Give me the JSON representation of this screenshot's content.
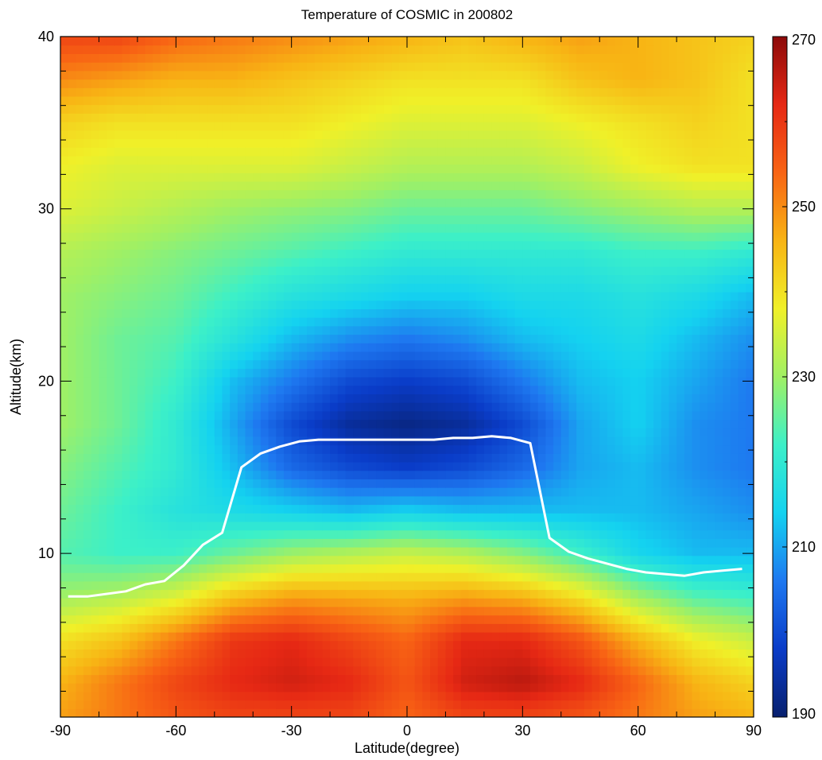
{
  "chart_data": {
    "type": "heatmap",
    "title": "Temperature of COSMIC in 200802",
    "xlabel": "Latitude(degree)",
    "ylabel": "Altitude(km)",
    "xlim": [
      -90,
      90
    ],
    "ylim": [
      0.5,
      40
    ],
    "x_ticks": [
      -90,
      -60,
      -30,
      0,
      30,
      60,
      90
    ],
    "y_ticks": [
      10,
      20,
      30,
      40
    ],
    "colorbar": {
      "range": [
        190,
        270
      ],
      "ticks": [
        190,
        210,
        230,
        250,
        270
      ],
      "colormap": [
        "#08206e",
        "#0a3cc8",
        "#1e78f0",
        "#14d2f0",
        "#3cf0c8",
        "#a0f064",
        "#f0f028",
        "#f8b414",
        "#f86414",
        "#e62814",
        "#8c0a0a"
      ]
    },
    "temperature_grid": {
      "latitude": [
        -90,
        -75,
        -60,
        -45,
        -30,
        -15,
        0,
        15,
        30,
        45,
        60,
        75,
        90
      ],
      "altitude": [
        0.5,
        2.5,
        5,
        7.5,
        10,
        12.5,
        15,
        17.5,
        20,
        22.5,
        25,
        27.5,
        30,
        32.5,
        35,
        37.5,
        40
      ],
      "values": [
        [
          248,
          252,
          256,
          258,
          258,
          258,
          254,
          258,
          258,
          256,
          252,
          248,
          246
        ],
        [
          246,
          252,
          258,
          262,
          264,
          262,
          256,
          264,
          266,
          262,
          254,
          246,
          242
        ],
        [
          240,
          244,
          252,
          260,
          262,
          258,
          254,
          262,
          262,
          256,
          246,
          238,
          234
        ],
        [
          230,
          232,
          236,
          244,
          248,
          247,
          246,
          248,
          246,
          240,
          230,
          224,
          222
        ],
        [
          224,
          222,
          222,
          226,
          230,
          232,
          234,
          232,
          228,
          222,
          215,
          212,
          212
        ],
        [
          226,
          222,
          218,
          216,
          214,
          212,
          214,
          212,
          212,
          212,
          212,
          210,
          208
        ],
        [
          228,
          224,
          220,
          212,
          204,
          200,
          198,
          200,
          204,
          210,
          212,
          208,
          206
        ],
        [
          230,
          226,
          220,
          210,
          200,
          194,
          192,
          194,
          200,
          210,
          214,
          208,
          206
        ],
        [
          230,
          226,
          222,
          212,
          206,
          200,
          198,
          200,
          206,
          212,
          214,
          210,
          206
        ],
        [
          230,
          226,
          224,
          218,
          212,
          208,
          206,
          208,
          212,
          214,
          216,
          212,
          208
        ],
        [
          230,
          228,
          226,
          222,
          218,
          216,
          214,
          214,
          216,
          216,
          218,
          216,
          212
        ],
        [
          232,
          230,
          228,
          226,
          224,
          222,
          220,
          220,
          220,
          220,
          222,
          222,
          220
        ],
        [
          236,
          234,
          232,
          230,
          229,
          228,
          226,
          226,
          226,
          228,
          230,
          232,
          232
        ],
        [
          238,
          236,
          236,
          236,
          236,
          234,
          232,
          232,
          232,
          234,
          238,
          240,
          240
        ],
        [
          242,
          240,
          240,
          240,
          240,
          238,
          236,
          236,
          236,
          238,
          240,
          242,
          240
        ],
        [
          250,
          248,
          246,
          246,
          244,
          242,
          240,
          240,
          240,
          244,
          246,
          244,
          240
        ],
        [
          258,
          258,
          254,
          252,
          250,
          248,
          246,
          244,
          246,
          248,
          246,
          244,
          242
        ]
      ]
    },
    "series": [
      {
        "type": "line",
        "color": "#ffffff",
        "x": [
          -88,
          -83,
          -73,
          -68,
          -63,
          -58,
          -53,
          -48,
          -43,
          -38,
          -33,
          -28,
          -23,
          -18,
          -13,
          -8,
          -3,
          2,
          7,
          12,
          17,
          22,
          27,
          32,
          37,
          42,
          47,
          52,
          57,
          62,
          67,
          72,
          77,
          82,
          87
        ],
        "y": [
          7.5,
          7.5,
          7.8,
          8.2,
          8.4,
          9.3,
          10.5,
          11.2,
          15.0,
          15.8,
          16.2,
          16.5,
          16.6,
          16.6,
          16.6,
          16.6,
          16.6,
          16.6,
          16.6,
          16.7,
          16.7,
          16.8,
          16.7,
          16.4,
          10.9,
          10.1,
          9.7,
          9.4,
          9.1,
          8.9,
          8.8,
          8.7,
          8.9,
          9.0,
          9.1
        ]
      }
    ]
  }
}
